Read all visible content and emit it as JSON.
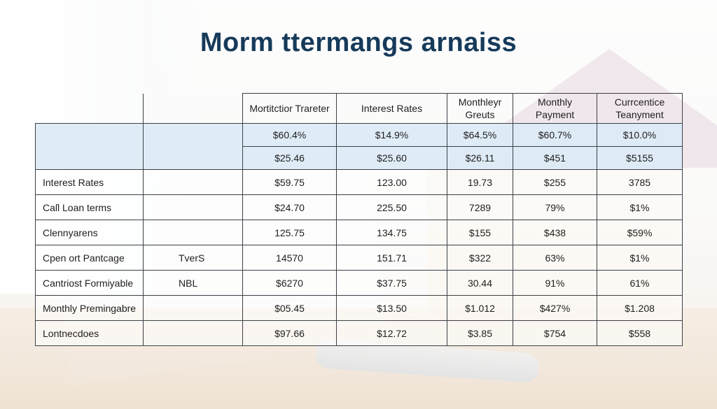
{
  "title": "Morm ttermangs arnaiss",
  "table": {
    "headers": [
      "",
      "",
      "Mortitctior Trareter",
      "Interest Rates",
      "Monthleyr Greuts",
      "Monthly Payment",
      "Currcentice Teanyment"
    ],
    "highlight_rows": [
      {
        "label": "",
        "sub": "",
        "cells": [
          "$60.4%",
          "$14.9%",
          "$64.5%",
          "$60.7%",
          "$10.0%"
        ]
      },
      {
        "label": "",
        "sub": "",
        "cells": [
          "$25.46",
          "$25.60",
          "$26.11",
          "$451",
          "$5155"
        ]
      }
    ],
    "rows": [
      {
        "label": "Interest Rates",
        "sub": "",
        "cells": [
          "$59.75",
          "123.00",
          "19.73",
          "$255",
          "3785"
        ]
      },
      {
        "label": "Caſl Loan terms",
        "sub": "",
        "cells": [
          "$24.70",
          "225.50",
          "7289",
          "79%",
          "$1%"
        ]
      },
      {
        "label": "Clennyarens",
        "sub": "",
        "cells": [
          "125.75",
          "134.75",
          "$155",
          "$438",
          "$59%"
        ]
      },
      {
        "label": "Cpen ort Pantcage",
        "sub": "TverS",
        "cells": [
          "14570",
          "151.71",
          "$322",
          "63%",
          "$1%"
        ]
      },
      {
        "label": "Cantriost Formiyable",
        "sub": "NBL",
        "cells": [
          "$6270",
          "$37.75",
          "30.44",
          "91%",
          "61%"
        ]
      },
      {
        "label": "Monthly Premingabre",
        "sub": "",
        "cells": [
          "$05.45",
          "$13.50",
          "$1.012",
          "$427%",
          "$1.208"
        ]
      },
      {
        "label": "Lontnecdoes",
        "sub": "",
        "cells": [
          "$97.66",
          "$12.72",
          "$3.85",
          "$754",
          "$558"
        ]
      }
    ]
  }
}
